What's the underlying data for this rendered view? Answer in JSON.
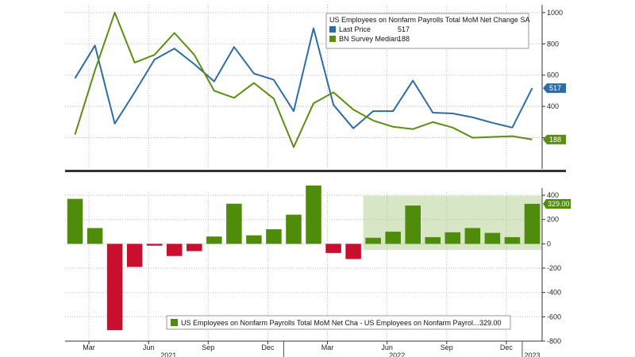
{
  "chart_data": [
    {
      "type": "line",
      "panel": "top",
      "legend": {
        "title": "US Employees on Nonfarm Payrolls Total MoM Net Change SA",
        "placement": "top-right",
        "entries": [
          {
            "label": "Last Price",
            "value": "517",
            "color": "#2e6da4"
          },
          {
            "label": "BN Survey Median",
            "value": "188",
            "color": "#5a8f12"
          }
        ]
      },
      "ylim": [
        0,
        1050
      ],
      "yticks": [
        "1000",
        "800",
        "600",
        "400",
        "200"
      ],
      "xlim": [
        -0.5,
        23.5
      ],
      "series": [
        {
          "name": "Last Price",
          "color": "#2e6da4",
          "values": [
            580,
            790,
            290,
            490,
            700,
            770,
            670,
            560,
            780,
            610,
            570,
            370,
            900,
            410,
            260,
            370,
            370,
            565,
            360,
            355,
            330,
            295,
            265,
            517
          ],
          "tag": "517"
        },
        {
          "name": "BN Survey Median",
          "color": "#5a8f12",
          "values": [
            220,
            630,
            1000,
            680,
            730,
            870,
            730,
            500,
            455,
            550,
            450,
            140,
            420,
            490,
            380,
            310,
            270,
            255,
            300,
            265,
            200,
            205,
            210,
            188
          ],
          "tag": "188"
        }
      ],
      "grid": true
    },
    {
      "type": "bar",
      "panel": "bottom",
      "legend": {
        "label": "US Employees on Nonfarm Payrolls Total MoM Net Cha - US Employees on Nonfarm Payrol...",
        "value": "329.00",
        "placement": "bottom"
      },
      "ylim": [
        -800,
        420
      ],
      "yticks": [
        "400",
        "200",
        "0",
        "-200",
        "-400",
        "-600",
        "-800"
      ],
      "xlim": [
        -0.5,
        23.5
      ],
      "values": [
        370,
        130,
        -710,
        -190,
        -15,
        -100,
        -60,
        60,
        330,
        70,
        120,
        240,
        480,
        -75,
        -125,
        50,
        100,
        315,
        55,
        95,
        130,
        90,
        55,
        329
      ],
      "positive_color": "#4e8c0a",
      "negative_color": "#c8102e",
      "highlight": {
        "from": 14.5,
        "to": 23.5,
        "color": "#d7e6c4"
      },
      "tag": "329.00",
      "grid": true
    }
  ],
  "x_axis": {
    "months": [
      {
        "label": "Mar",
        "pos": 0.7
      },
      {
        "label": "Jun",
        "pos": 3.7
      },
      {
        "label": "Sep",
        "pos": 6.7
      },
      {
        "label": "Dec",
        "pos": 9.7
      },
      {
        "label": "Mar",
        "pos": 12.7
      },
      {
        "label": "Jun",
        "pos": 15.7
      },
      {
        "label": "Sep",
        "pos": 18.7
      },
      {
        "label": "Dec",
        "pos": 21.7
      }
    ],
    "years": [
      {
        "label": "2021",
        "pos": 4.7
      },
      {
        "label": "2022",
        "pos": 16.2
      },
      {
        "label": "2023",
        "pos": 23.0
      }
    ]
  }
}
